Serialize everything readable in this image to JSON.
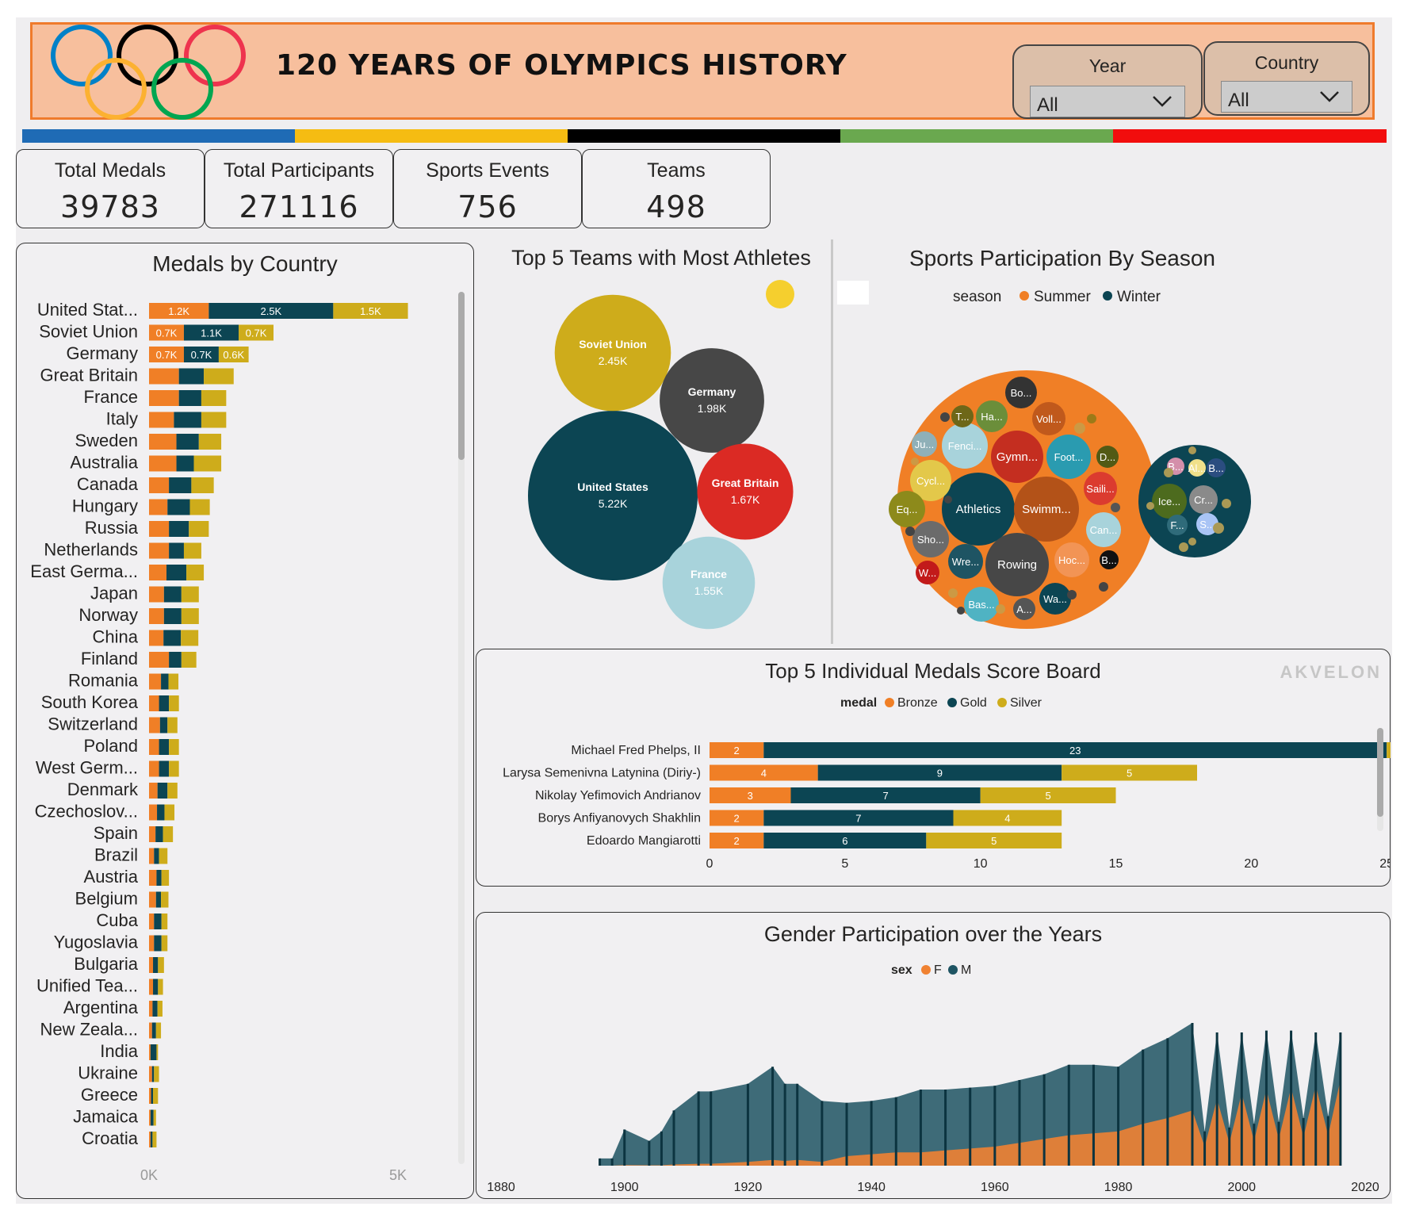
{
  "header": {
    "title": "120 YEARS OF OLYMPICS HISTORY",
    "filters": [
      {
        "label": "Year",
        "value": "All"
      },
      {
        "label": "Country",
        "value": "All"
      }
    ],
    "ring_colors": [
      "#0081c8",
      "#fcb131",
      "#000000",
      "#00a651",
      "#ee334e"
    ],
    "stripe_colors": [
      "#1f6bb5",
      "#f5bc12",
      "#000000",
      "#6aa84f",
      "#f20d0d"
    ]
  },
  "kpis": [
    {
      "label": "Total Medals",
      "value": "39783"
    },
    {
      "label": "Total Participants",
      "value": "271116"
    },
    {
      "label": "Sports Events",
      "value": "756"
    },
    {
      "label": "Teams",
      "value": "498"
    }
  ],
  "colors": {
    "bronze": "#f07f26",
    "gold": "#0c4553",
    "silver": "#ceac1b",
    "male": "#1e5463",
    "female": "#f08232"
  },
  "chart_data": [
    {
      "type": "bar",
      "title": "Medals by Country",
      "orientation": "horizontal",
      "stacked": true,
      "categories": [
        "United Stat...",
        "Soviet Union",
        "Germany",
        "Great Britain",
        "France",
        "Italy",
        "Sweden",
        "Australia",
        "Canada",
        "Hungary",
        "Russia",
        "Netherlands",
        "East Germa...",
        "Japan",
        "Norway",
        "China",
        "Finland",
        "Romania",
        "South Korea",
        "Switzerland",
        "Poland",
        "West Germ...",
        "Denmark",
        "Czechoslov...",
        "Spain",
        "Brazil",
        "Austria",
        "Belgium",
        "Cuba",
        "Yugoslavia",
        "Bulgaria",
        "Unified Tea...",
        "Argentina",
        "New Zeala...",
        "India",
        "Ukraine",
        "Greece",
        "Jamaica",
        "Croatia"
      ],
      "series": [
        {
          "name": "Bronze",
          "values": [
            1200,
            700,
            700,
            600,
            600,
            500,
            550,
            550,
            400,
            370,
            400,
            400,
            350,
            300,
            300,
            290,
            400,
            240,
            200,
            220,
            200,
            200,
            170,
            160,
            130,
            100,
            150,
            140,
            100,
            100,
            80,
            80,
            70,
            60,
            30,
            60,
            40,
            30,
            30
          ],
          "labels": [
            "1.2K",
            "0.7K",
            "0.7K"
          ]
        },
        {
          "name": "Gold",
          "values": [
            2500,
            1100,
            700,
            500,
            450,
            550,
            450,
            350,
            450,
            450,
            400,
            300,
            400,
            350,
            350,
            350,
            250,
            150,
            200,
            150,
            200,
            200,
            200,
            150,
            150,
            100,
            100,
            100,
            150,
            150,
            100,
            100,
            100,
            80,
            120,
            40,
            40,
            60,
            40
          ],
          "labels": [
            "2.5K",
            "1.1K",
            "0.7K"
          ]
        },
        {
          "name": "Silver",
          "values": [
            1500,
            700,
            600,
            600,
            500,
            500,
            450,
            550,
            450,
            400,
            400,
            350,
            350,
            350,
            350,
            350,
            300,
            200,
            200,
            200,
            200,
            200,
            200,
            200,
            200,
            170,
            150,
            150,
            120,
            120,
            120,
            100,
            100,
            100,
            30,
            100,
            100,
            50,
            80
          ],
          "labels": [
            "1.5K",
            "0.7K",
            "0.6K"
          ]
        }
      ],
      "xaxis_ticks": [
        "0K",
        "5K"
      ],
      "xlim": [
        0,
        5000
      ]
    },
    {
      "type": "bubble",
      "title": "Top 5 Teams with Most Athletes",
      "points": [
        {
          "name": "United States",
          "label": "5.22K",
          "value": 5220,
          "color": "#0c4553"
        },
        {
          "name": "Soviet Union",
          "label": "2.45K",
          "value": 2450,
          "color": "#ceac1b"
        },
        {
          "name": "Germany",
          "label": "1.98K",
          "value": 1980,
          "color": "#474747"
        },
        {
          "name": "Great Britain",
          "label": "1.67K",
          "value": 1670,
          "color": "#db2a24"
        },
        {
          "name": "France",
          "label": "1.55K",
          "value": 1550,
          "color": "#a8d3db"
        }
      ]
    },
    {
      "type": "circle-packing",
      "title": "Sports Participation By Season",
      "legend_title": "season",
      "legend": [
        {
          "name": "Summer",
          "color": "#f07f26"
        },
        {
          "name": "Winter",
          "color": "#0c4553"
        }
      ],
      "summer_labels": [
        "Athletics",
        "Swimm...",
        "Rowing",
        "Gymn...",
        "Fenci...",
        "Foot...",
        "Cycl...",
        "Eq...",
        "Sho...",
        "Wre...",
        "Bas...",
        "Hoc...",
        "Wa...",
        "Can...",
        "Saili...",
        "Voll...",
        "Ha...",
        "Bo...",
        "Ju...",
        "T...",
        "D...",
        "W...",
        "A...",
        "B..."
      ],
      "winter_labels": [
        "Ice...",
        "Cr...",
        "S...",
        "F...",
        "B...",
        "Al...",
        "B..."
      ]
    },
    {
      "type": "bar",
      "title": "Top 5 Individual Medals Score Board",
      "watermark": "AKVELON",
      "orientation": "horizontal",
      "stacked": true,
      "legend_title": "medal",
      "categories": [
        "Michael Fred Phelps, II",
        "Larysa Semenivna Latynina (Diriy-)",
        "Nikolay Yefimovich Andrianov",
        "Borys Anfiyanovych Shakhlin",
        "Edoardo Mangiarotti"
      ],
      "series": [
        {
          "name": "Bronze",
          "values": [
            2,
            4,
            3,
            2,
            2
          ]
        },
        {
          "name": "Gold",
          "values": [
            23,
            9,
            7,
            7,
            6
          ]
        },
        {
          "name": "Silver",
          "values": [
            3,
            5,
            5,
            4,
            5
          ]
        }
      ],
      "xlim": [
        0,
        30
      ],
      "xticks": [
        "0",
        "5",
        "10",
        "15",
        "20",
        "25",
        "30"
      ]
    },
    {
      "type": "area",
      "title": "Gender Participation over the Years",
      "legend_title": "sex",
      "xlim": [
        1880,
        2020
      ],
      "xticks": [
        "1880",
        "1900",
        "1920",
        "1940",
        "1960",
        "1980",
        "2000",
        "2020"
      ],
      "series": [
        {
          "name": "M",
          "x": [
            1896,
            1898,
            1900,
            1904,
            1906,
            1908,
            1912,
            1914,
            1920,
            1924,
            1926,
            1928,
            1932,
            1936,
            1940,
            1944,
            1948,
            1952,
            1956,
            1960,
            1964,
            1968,
            1972,
            1976,
            1980,
            1984,
            1988,
            1992,
            1994,
            1996,
            1998,
            2000,
            2002,
            2004,
            2006,
            2008,
            2010,
            2012,
            2014,
            2016
          ],
          "y": [
            380,
            380,
            1900,
            1300,
            1800,
            2900,
            3900,
            3900,
            4300,
            5200,
            4300,
            4300,
            3400,
            3300,
            3400,
            3600,
            4000,
            4000,
            4100,
            4200,
            4500,
            4800,
            5300,
            5300,
            5200,
            6100,
            6700,
            7500,
            1800,
            7000,
            2000,
            7000,
            2200,
            7100,
            2300,
            7100,
            2500,
            7000,
            2600,
            7000
          ]
        },
        {
          "name": "F",
          "x": [
            1896,
            1898,
            1900,
            1904,
            1906,
            1908,
            1912,
            1914,
            1920,
            1924,
            1926,
            1928,
            1932,
            1936,
            1940,
            1944,
            1948,
            1952,
            1956,
            1960,
            1964,
            1968,
            1972,
            1976,
            1980,
            1984,
            1988,
            1992,
            1994,
            1996,
            1998,
            2000,
            2002,
            2004,
            2006,
            2008,
            2010,
            2012,
            2014,
            2016
          ],
          "y": [
            0,
            0,
            30,
            20,
            20,
            60,
            100,
            100,
            200,
            300,
            250,
            300,
            200,
            500,
            600,
            700,
            700,
            800,
            900,
            1000,
            1200,
            1400,
            1600,
            1700,
            1800,
            2200,
            2500,
            2900,
            1000,
            3500,
            1200,
            3800,
            1300,
            4000,
            1400,
            4100,
            1500,
            4200,
            1600,
            4500
          ]
        }
      ],
      "legend": [
        {
          "name": "F",
          "color": "#f08232"
        },
        {
          "name": "M",
          "color": "#1e5463"
        }
      ]
    }
  ]
}
